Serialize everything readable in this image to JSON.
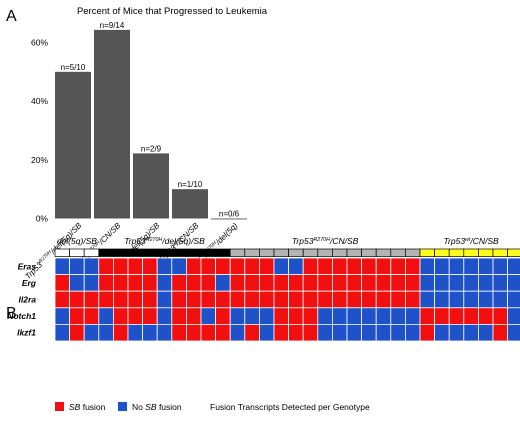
{
  "panels": {
    "a": {
      "letter": "A"
    },
    "b": {
      "letter": "B"
    }
  },
  "colors": {
    "bar": "#555555",
    "sb_fusion": "#f20f0f",
    "no_sb_fusion": "#1f52c9",
    "het": "#ffffff",
    "hom": "#000000",
    "cn": "#b4b4b4",
    "wt": "#ffff1f"
  },
  "chart_data": [
    {
      "type": "bar",
      "title": "Percent of Mice that Progressed to Leukemia",
      "xlabel": "",
      "ylabel": "",
      "ylim": [
        0,
        70
      ],
      "yticks": [
        0,
        20,
        40,
        60
      ],
      "ytick_labels": [
        "0%",
        "20%",
        "40%",
        "60%"
      ],
      "grid": false,
      "categories": [
        {
          "base": "Trp53",
          "sup": "R270H",
          "rest": "/del(5q)/SB"
        },
        {
          "base": "Trp53",
          "sup": "R270H",
          "rest": "/CN/SB"
        },
        {
          "base": "del(5q)/SB",
          "sup": "",
          "rest": ""
        },
        {
          "base": "Trp53",
          "sup": "wt",
          "rest": "/CN/SB"
        },
        {
          "base": "Trp53",
          "sup": "R270H",
          "rest": "/del(5q)"
        }
      ],
      "values": [
        50,
        64.3,
        22.2,
        10,
        0
      ],
      "bar_labels": [
        "n=5/10",
        "n=9/14",
        "n=2/9",
        "n=1/10",
        "n=0/6"
      ]
    },
    {
      "type": "heatmap",
      "groups": [
        {
          "base": "del(5q)/SB",
          "sup": "",
          "rest": "",
          "key": "het",
          "count": 3
        },
        {
          "base": "Trp53",
          "sup": "R270H",
          "rest": "/del(5q)/SB",
          "key": "hom",
          "count": 9
        },
        {
          "base": "Trp53",
          "sup": "R270H",
          "rest": "/CN/SB",
          "key": "cn",
          "count": 13
        },
        {
          "base": "Trp53",
          "sup": "wt",
          "rest": "/CN/SB",
          "key": "wt",
          "count": 7
        }
      ],
      "rows": [
        "Eras",
        "Erg",
        "Il2ra",
        "Notch1",
        "Ikzf1"
      ],
      "matrix": [
        [
          0,
          0,
          0,
          1,
          1,
          1,
          1,
          0,
          0,
          1,
          1,
          1,
          1,
          1,
          1,
          0,
          0,
          1,
          1,
          1,
          1,
          1,
          1,
          1,
          1,
          0,
          0,
          0,
          0,
          0,
          0,
          0
        ],
        [
          1,
          0,
          0,
          1,
          1,
          1,
          1,
          0,
          1,
          1,
          1,
          0,
          1,
          1,
          1,
          1,
          1,
          1,
          1,
          1,
          1,
          1,
          1,
          1,
          1,
          0,
          0,
          0,
          0,
          0,
          0,
          0
        ],
        [
          1,
          1,
          1,
          1,
          1,
          1,
          1,
          0,
          1,
          1,
          1,
          1,
          1,
          1,
          1,
          1,
          1,
          1,
          1,
          1,
          1,
          1,
          1,
          1,
          1,
          0,
          0,
          0,
          0,
          0,
          0,
          0
        ],
        [
          0,
          1,
          1,
          0,
          1,
          1,
          1,
          0,
          1,
          1,
          0,
          1,
          0,
          0,
          0,
          1,
          1,
          1,
          0,
          0,
          0,
          0,
          0,
          0,
          0,
          1,
          1,
          1,
          1,
          1,
          1,
          0
        ],
        [
          0,
          1,
          0,
          0,
          1,
          0,
          0,
          0,
          1,
          1,
          1,
          1,
          0,
          1,
          0,
          1,
          1,
          1,
          0,
          0,
          0,
          0,
          0,
          0,
          0,
          1,
          0,
          0,
          0,
          0,
          1,
          0
        ]
      ],
      "legend": [
        {
          "label_i": "SB",
          "label_rest": " fusion",
          "color_key": "sb_fusion"
        },
        {
          "label_plain": "No ",
          "label_i": "SB",
          "label_rest": " fusion",
          "color_key": "no_sb_fusion"
        }
      ],
      "caption": "Fusion Transcripts Detected per Genotype"
    }
  ]
}
